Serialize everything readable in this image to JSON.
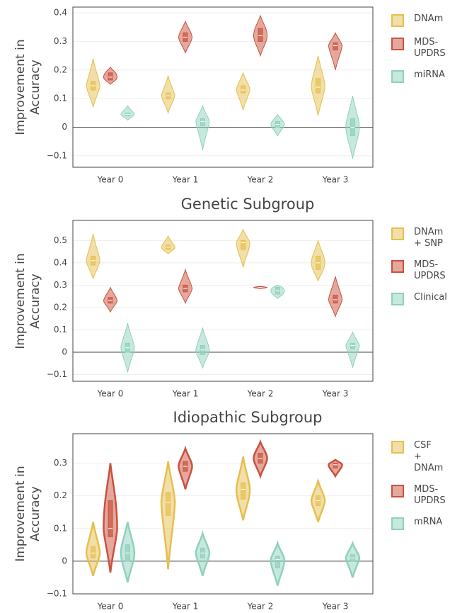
{
  "chart_data": [
    {
      "type": "violin",
      "categories": [
        "Year 0",
        "Year 1",
        "Year 2",
        "Year 3"
      ],
      "y_title": "Improvement in\nAccuracy",
      "ylim": [
        -0.14,
        0.42
      ],
      "yticks": [
        {
          "value": -0.1,
          "label": "−0.1"
        },
        0,
        0.1,
        0.2,
        0.3,
        0.4
      ],
      "grid": true,
      "series": [
        {
          "name": "DNAm",
          "color": "#e5bf4f",
          "min": [
            0.07,
            0.05,
            0.06,
            0.04
          ],
          "q1": [
            0.13,
            0.1,
            0.12,
            0.12
          ],
          "median": [
            0.145,
            0.11,
            0.13,
            0.14
          ],
          "q3": [
            0.16,
            0.12,
            0.145,
            0.17
          ],
          "max": [
            0.24,
            0.18,
            0.19,
            0.25
          ]
        },
        {
          "name": "MDS-\nUPDRS",
          "color": "#c9523e",
          "min": [
            0.15,
            0.26,
            0.25,
            0.2
          ],
          "q1": [
            0.165,
            0.3,
            0.3,
            0.27
          ],
          "median": [
            0.175,
            0.315,
            0.32,
            0.285
          ],
          "q3": [
            0.19,
            0.33,
            0.345,
            0.295
          ],
          "max": [
            0.21,
            0.37,
            0.39,
            0.33
          ]
        },
        {
          "name": "miRNA",
          "color": "#8fd1bd",
          "min": [
            0.025,
            -0.08,
            -0.03,
            -0.11
          ],
          "q1": [
            0.04,
            0.005,
            0,
            -0.03
          ],
          "median": [
            0.045,
            0.02,
            0.01,
            0
          ],
          "q3": [
            0.05,
            0.03,
            0.02,
            0.03
          ],
          "max": [
            0.075,
            0.075,
            0.045,
            0.11
          ]
        }
      ]
    },
    {
      "type": "violin",
      "title": "Genetic Subgroup",
      "categories": [
        "Year 0",
        "Year 1",
        "Year 2",
        "Year 3"
      ],
      "y_title": "Improvement in\nAccuracy",
      "ylim": [
        -0.13,
        0.59
      ],
      "yticks": [
        {
          "value": -0.1,
          "label": "−0.1"
        },
        0,
        0.1,
        0.2,
        0.3,
        0.4,
        0.5
      ],
      "grid": true,
      "series": [
        {
          "name": "DNAm\n+ SNP",
          "color": "#e5bf4f",
          "min": [
            0.33,
            0.44,
            0.38,
            0.32
          ],
          "q1": [
            0.39,
            0.46,
            0.46,
            0.37
          ],
          "median": [
            0.41,
            0.47,
            0.49,
            0.4
          ],
          "q3": [
            0.43,
            0.48,
            0.5,
            0.43
          ],
          "max": [
            0.53,
            0.52,
            0.55,
            0.5
          ]
        },
        {
          "name": "MDS-\nUPDRS",
          "color": "#c9523e",
          "min": [
            0.18,
            0.22,
            0.285,
            0.16
          ],
          "q1": [
            0.22,
            0.27,
            0.288,
            0.22
          ],
          "median": [
            0.23,
            0.285,
            0.29,
            0.235
          ],
          "q3": [
            0.245,
            0.3,
            0.292,
            0.255
          ],
          "max": [
            0.29,
            0.37,
            0.295,
            0.34
          ]
        },
        {
          "name": "Clinical",
          "color": "#8fd1bd",
          "min": [
            -0.09,
            -0.07,
            0.24,
            -0.07
          ],
          "q1": [
            0,
            -0.01,
            0.26,
            0.015
          ],
          "median": [
            0.02,
            0.01,
            0.275,
            0.03
          ],
          "q3": [
            0.04,
            0.03,
            0.29,
            0.04
          ],
          "max": [
            0.13,
            0.11,
            0.3,
            0.09
          ]
        }
      ]
    },
    {
      "type": "violin",
      "title": "Idiopathic Subgroup",
      "categories": [
        "Year 0",
        "Year 1",
        "Year 2",
        "Year 3"
      ],
      "y_title": "Improvement in\nAccuracy",
      "ylim": [
        -0.1,
        0.39
      ],
      "yticks": [
        {
          "value": -0.1,
          "label": "−0.1"
        },
        0,
        0.1,
        0.2,
        0.3
      ],
      "grid": true,
      "series": [
        {
          "name": "CSF\n+ DNAm",
          "color": "#e5bf4f",
          "min": [
            -0.045,
            -0.025,
            0.125,
            0.12
          ],
          "q1": [
            0.01,
            0.14,
            0.19,
            0.17
          ],
          "median": [
            0.025,
            0.18,
            0.22,
            0.185
          ],
          "q3": [
            0.045,
            0.21,
            0.24,
            0.2
          ],
          "max": [
            0.12,
            0.305,
            0.32,
            0.245
          ]
        },
        {
          "name": "MDS-\nUPDRS",
          "color": "#c9523e",
          "min": [
            -0.035,
            0.22,
            0.26,
            0.26
          ],
          "q1": [
            0.075,
            0.275,
            0.3,
            0.285
          ],
          "median": [
            0.1,
            0.29,
            0.315,
            0.295
          ],
          "q3": [
            0.185,
            0.305,
            0.33,
            0.3
          ],
          "max": [
            0.3,
            0.345,
            0.365,
            0.31
          ]
        },
        {
          "name": "mRNA",
          "color": "#8fd1bd",
          "min": [
            -0.065,
            -0.045,
            -0.075,
            -0.05
          ],
          "q1": [
            0,
            0.01,
            -0.02,
            0
          ],
          "median": [
            0.025,
            0.025,
            0.005,
            0.01
          ],
          "q3": [
            0.05,
            0.04,
            0.015,
            0.02
          ],
          "max": [
            0.12,
            0.085,
            0.055,
            0.055
          ]
        }
      ]
    }
  ]
}
